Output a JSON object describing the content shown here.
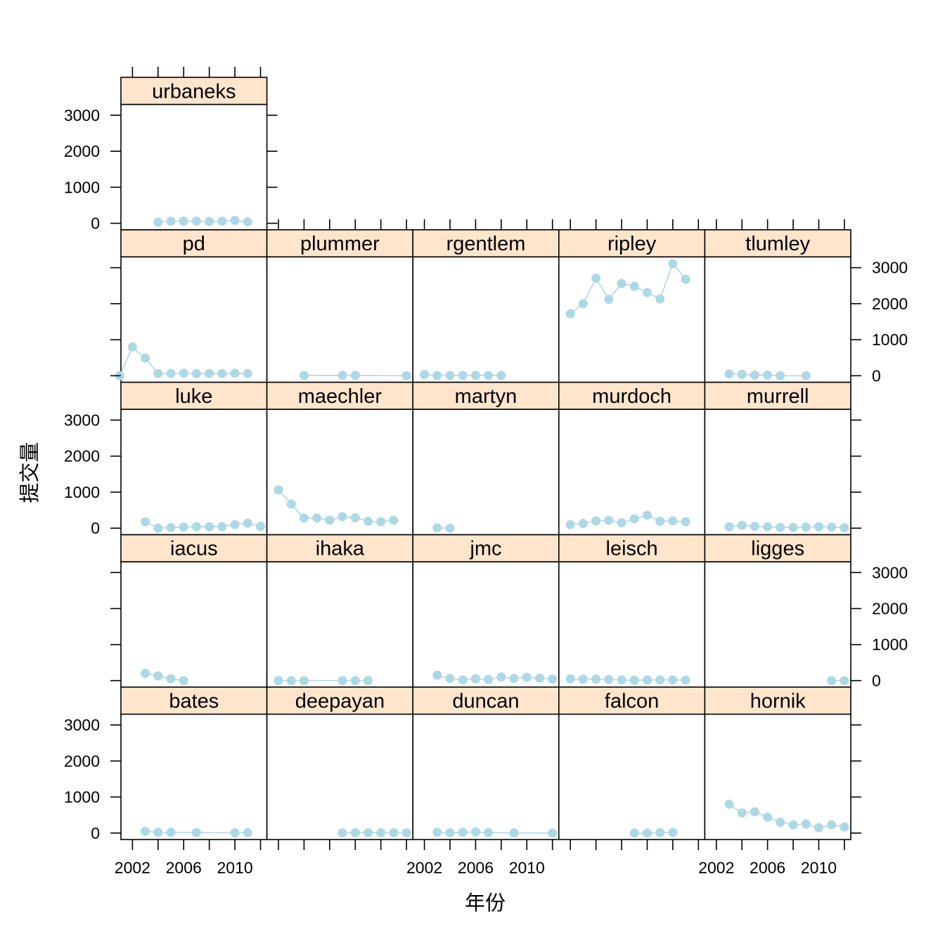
{
  "chart_data": {
    "type": "line",
    "layout": "trellis",
    "xlabel": "年份",
    "ylabel": "提交量",
    "xlim": [
      2001.1,
      2012.5
    ],
    "ylim": [
      -180,
      3300
    ],
    "x_ticks": [
      2002,
      2004,
      2006,
      2008,
      2010,
      2012
    ],
    "x_tick_labels": [
      "2002",
      "2006",
      "2010"
    ],
    "y_ticks": [
      0,
      1000,
      2000,
      3000
    ],
    "series_color": "#add8e6",
    "strip_color": "#ffe5cc",
    "panels": [
      {
        "name": "bates",
        "x": [
          2003,
          2004,
          2005,
          2007,
          2010,
          2011
        ],
        "y": [
          50,
          20,
          20,
          15,
          5,
          10
        ]
      },
      {
        "name": "deepayan",
        "x": [
          2007,
          2008,
          2009,
          2010,
          2011,
          2012
        ],
        "y": [
          5,
          10,
          10,
          10,
          10,
          5
        ]
      },
      {
        "name": "duncan",
        "x": [
          2003,
          2004,
          2005,
          2006,
          2007,
          2009,
          2012
        ],
        "y": [
          20,
          10,
          20,
          30,
          10,
          5,
          0
        ]
      },
      {
        "name": "falcon",
        "x": [
          2007,
          2008,
          2009,
          2010
        ],
        "y": [
          0,
          0,
          10,
          20
        ]
      },
      {
        "name": "hornik",
        "x": [
          2003,
          2004,
          2005,
          2006,
          2007,
          2008,
          2009,
          2010,
          2011,
          2012
        ],
        "y": [
          800,
          560,
          590,
          440,
          300,
          230,
          250,
          150,
          230,
          170
        ]
      },
      {
        "name": "iacus",
        "x": [
          2003,
          2004,
          2005,
          2006
        ],
        "y": [
          200,
          130,
          50,
          0
        ]
      },
      {
        "name": "ihaka",
        "x": [
          2002,
          2003,
          2004,
          2007,
          2008,
          2009
        ],
        "y": [
          0,
          0,
          0,
          0,
          0,
          0
        ]
      },
      {
        "name": "jmc",
        "x": [
          2003,
          2004,
          2005,
          2006,
          2007,
          2008,
          2009,
          2010,
          2011,
          2012
        ],
        "y": [
          150,
          60,
          20,
          50,
          30,
          100,
          60,
          90,
          70,
          40
        ]
      },
      {
        "name": "leisch",
        "x": [
          2002,
          2003,
          2004,
          2005,
          2006,
          2007,
          2008,
          2009,
          2010,
          2011
        ],
        "y": [
          50,
          40,
          40,
          30,
          20,
          10,
          20,
          20,
          20,
          15
        ]
      },
      {
        "name": "ligges",
        "x": [
          2011,
          2012
        ],
        "y": [
          0,
          0
        ]
      },
      {
        "name": "luke",
        "x": [
          2003,
          2004,
          2005,
          2006,
          2007,
          2008,
          2009,
          2010,
          2011,
          2012
        ],
        "y": [
          180,
          0,
          20,
          30,
          40,
          40,
          40,
          100,
          140,
          50
        ]
      },
      {
        "name": "maechler",
        "x": [
          2002,
          2003,
          2004,
          2005,
          2006,
          2007,
          2008,
          2009,
          2010,
          2011
        ],
        "y": [
          1060,
          670,
          280,
          280,
          220,
          320,
          290,
          190,
          180,
          220
        ]
      },
      {
        "name": "martyn",
        "x": [
          2003,
          2004
        ],
        "y": [
          10,
          0
        ]
      },
      {
        "name": "murdoch",
        "x": [
          2002,
          2003,
          2004,
          2005,
          2006,
          2007,
          2008,
          2009,
          2010,
          2011
        ],
        "y": [
          100,
          130,
          200,
          220,
          150,
          260,
          360,
          190,
          200,
          180
        ]
      },
      {
        "name": "murrell",
        "x": [
          2003,
          2004,
          2005,
          2006,
          2007,
          2008,
          2009,
          2010,
          2011,
          2012
        ],
        "y": [
          40,
          80,
          50,
          40,
          20,
          20,
          30,
          40,
          30,
          10
        ]
      },
      {
        "name": "pd",
        "x": [
          2001,
          2002,
          2003,
          2004,
          2005,
          2006,
          2007,
          2008,
          2009,
          2010,
          2011
        ],
        "y": [
          0,
          800,
          490,
          60,
          60,
          70,
          60,
          60,
          60,
          70,
          60
        ]
      },
      {
        "name": "plummer",
        "x": [
          2004,
          2007,
          2008,
          2012
        ],
        "y": [
          10,
          10,
          10,
          0
        ]
      },
      {
        "name": "rgentlem",
        "x": [
          2002,
          2003,
          2004,
          2005,
          2006,
          2007,
          2008
        ],
        "y": [
          30,
          10,
          10,
          10,
          10,
          10,
          10
        ]
      },
      {
        "name": "ripley",
        "x": [
          2002,
          2003,
          2004,
          2005,
          2006,
          2007,
          2008,
          2009,
          2010,
          2011
        ],
        "y": [
          1720,
          2000,
          2710,
          2120,
          2560,
          2480,
          2310,
          2130,
          3110,
          2680
        ]
      },
      {
        "name": "tlumley",
        "x": [
          2003,
          2004,
          2005,
          2006,
          2007,
          2009
        ],
        "y": [
          50,
          40,
          20,
          20,
          0,
          0
        ]
      },
      {
        "name": "urbaneks",
        "x": [
          2004,
          2005,
          2006,
          2007,
          2008,
          2009,
          2010,
          2011
        ],
        "y": [
          30,
          60,
          60,
          60,
          50,
          60,
          80,
          40
        ]
      }
    ]
  }
}
